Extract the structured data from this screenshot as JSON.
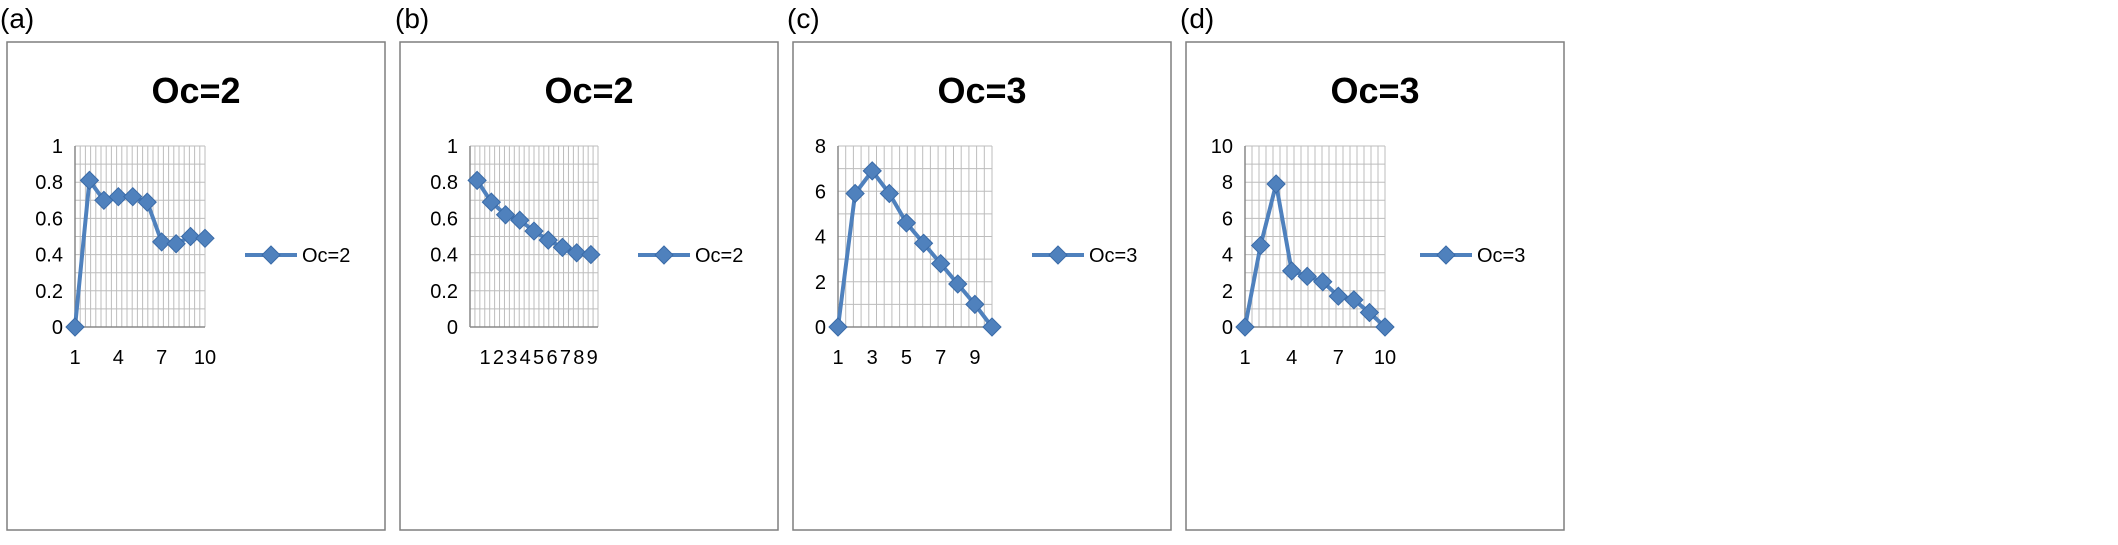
{
  "colors": {
    "series": "#4F81BD",
    "series_dark": "#3A6BA8",
    "grid": "#BDBDBD",
    "frame": "#7F7F7F",
    "text": "#000000"
  },
  "marker_icon": "diamond-marker",
  "chart_data": [
    {
      "panel_label": "(a)",
      "type": "line",
      "title": "Oc=2",
      "x": [
        1,
        2,
        3,
        4,
        5,
        6,
        7,
        8,
        9,
        10
      ],
      "x_tick_labels": [
        "1",
        "4",
        "7",
        "10"
      ],
      "series": [
        {
          "name": "Oc=2",
          "values": [
            0,
            0.81,
            0.7,
            0.72,
            0.72,
            0.69,
            0.47,
            0.46,
            0.5,
            0.49
          ]
        }
      ],
      "y_tick_labels": [
        "0",
        "0.2",
        "0.4",
        "0.6",
        "0.8",
        "1"
      ],
      "ylim": [
        0,
        1
      ],
      "grid": true,
      "legend": "right"
    },
    {
      "panel_label": "(b)",
      "type": "line",
      "title": "Oc=2",
      "x": [
        1,
        2,
        3,
        4,
        5,
        6,
        7,
        8,
        9
      ],
      "x_tick_labels": [
        "1",
        "2",
        "3",
        "4",
        "5",
        "6",
        "7",
        "8",
        "9"
      ],
      "series": [
        {
          "name": "Oc=2",
          "values": [
            0.81,
            0.69,
            0.62,
            0.59,
            0.53,
            0.48,
            0.44,
            0.41,
            0.4
          ]
        }
      ],
      "y_tick_labels": [
        "0",
        "0.2",
        "0.4",
        "0.6",
        "0.8",
        "1"
      ],
      "ylim": [
        0,
        1
      ],
      "grid": true,
      "legend": "right"
    },
    {
      "panel_label": "(c)",
      "type": "line",
      "title": "Oc=3",
      "x": [
        1,
        2,
        3,
        4,
        5,
        6,
        7,
        8,
        9,
        10
      ],
      "x_tick_labels": [
        "1",
        "3",
        "5",
        "7",
        "9"
      ],
      "series": [
        {
          "name": "Oc=3",
          "values": [
            0,
            5.9,
            6.9,
            5.9,
            4.6,
            3.7,
            2.8,
            1.9,
            1.0,
            0
          ]
        }
      ],
      "y_tick_labels": [
        "0",
        "2",
        "4",
        "6",
        "8"
      ],
      "ylim": [
        0,
        8
      ],
      "grid": true,
      "legend": "right"
    },
    {
      "panel_label": "(d)",
      "type": "line",
      "title": "Oc=3",
      "x": [
        1,
        2,
        3,
        4,
        5,
        6,
        7,
        8,
        9,
        10
      ],
      "x_tick_labels": [
        "1",
        "4",
        "7",
        "10"
      ],
      "series": [
        {
          "name": "Oc=3",
          "values": [
            0,
            4.5,
            7.9,
            3.1,
            2.8,
            2.5,
            1.7,
            1.5,
            0.8,
            0
          ]
        }
      ],
      "y_tick_labels": [
        "0",
        "2",
        "4",
        "6",
        "8",
        "10"
      ],
      "ylim": [
        0,
        10
      ],
      "grid": true,
      "legend": "right"
    }
  ]
}
